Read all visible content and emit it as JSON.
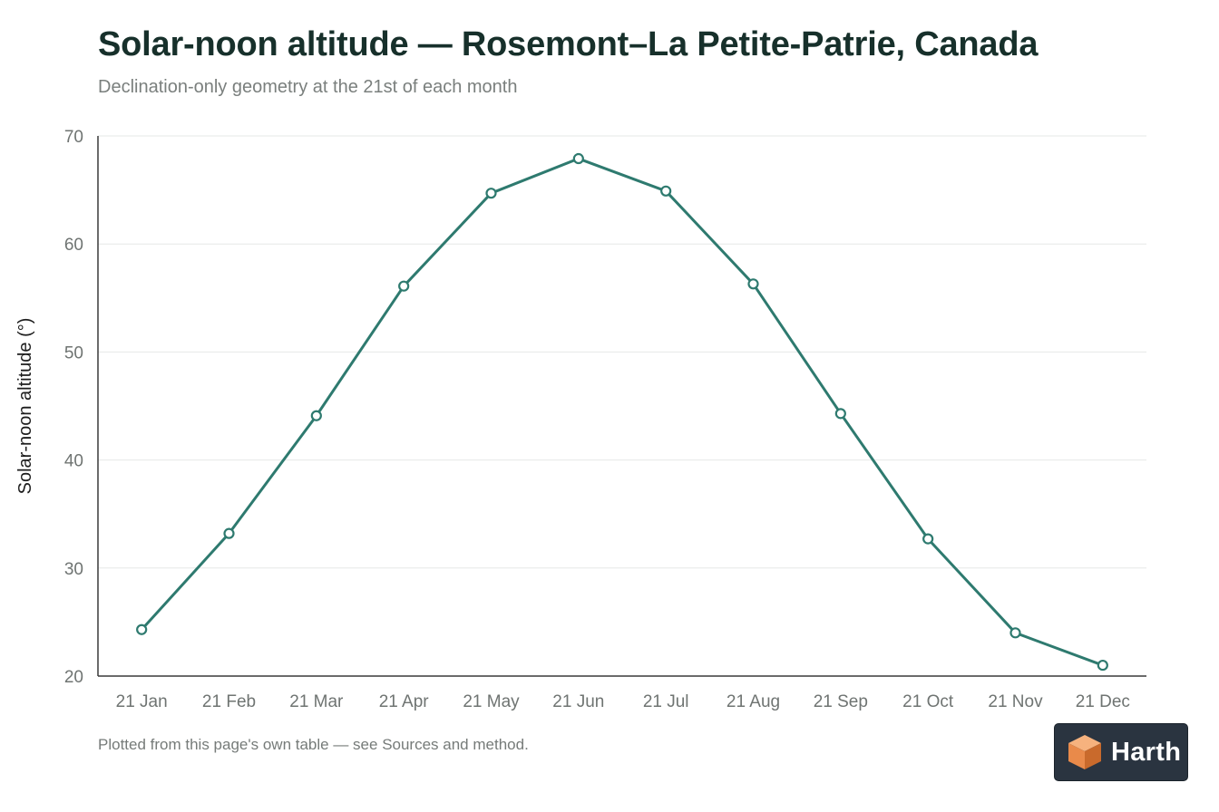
{
  "header": {
    "title": "Solar-noon altitude — Rosemont–La Petite-Patrie, Canada",
    "subtitle": "Declination-only geometry at the 21st of each month"
  },
  "footer": {
    "note": "Plotted from this page's own table — see Sources and method."
  },
  "brand": {
    "name": "Harth",
    "logo_icon": "cube-icon",
    "background": "#2a3440",
    "mark_colors": [
      "#f6b27e",
      "#e98a4a",
      "#c96a2c"
    ]
  },
  "chart_data": {
    "type": "line",
    "title": "Solar-noon altitude — Rosemont–La Petite-Patrie, Canada",
    "subtitle": "Declination-only geometry at the 21st of each month",
    "xlabel": "",
    "ylabel": "Solar-noon altitude (°)",
    "categories": [
      "21 Jan",
      "21 Feb",
      "21 Mar",
      "21 Apr",
      "21 May",
      "21 Jun",
      "21 Jul",
      "21 Aug",
      "21 Sep",
      "21 Oct",
      "21 Nov",
      "21 Dec"
    ],
    "series": [
      {
        "values": [
          24.3,
          33.2,
          44.1,
          56.1,
          64.7,
          67.9,
          64.9,
          56.3,
          44.3,
          32.7,
          24.0,
          21.0
        ],
        "color": "#2e7a6f"
      }
    ],
    "ylim": [
      20,
      70
    ],
    "yticks": [
      20,
      30,
      40,
      50,
      60,
      70
    ],
    "grid": true,
    "legend": "none"
  }
}
